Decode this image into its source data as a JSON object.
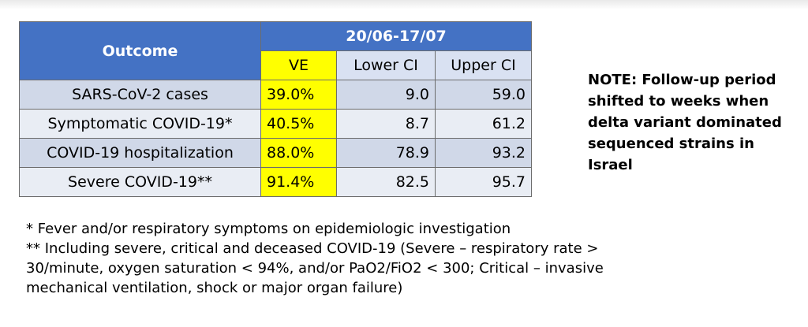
{
  "table": {
    "header_outcome": "Outcome",
    "header_period": "20/06-17/07",
    "header_ve": "VE",
    "header_lower": "Lower CI",
    "header_upper": "Upper CI",
    "rows": [
      {
        "outcome": "SARS-CoV-2 cases",
        "ve": "39.0%",
        "lower": "9.0",
        "upper": "59.0"
      },
      {
        "outcome": "Symptomatic COVID-19*",
        "ve": "40.5%",
        "lower": "8.7",
        "upper": "61.2"
      },
      {
        "outcome": "COVID-19 hospitalization",
        "ve": "88.0%",
        "lower": "78.9",
        "upper": "93.2"
      },
      {
        "outcome": "Severe COVID-19**",
        "ve": "91.4%",
        "lower": "82.5",
        "upper": "95.7"
      }
    ]
  },
  "note": "NOTE: Follow-up period shifted to weeks when delta variant dominated sequenced strains in Israel",
  "footnotes": [
    "* Fever and/or respiratory symptoms on epidemiologic investigation",
    "** Including severe, critical and deceased COVID-19 (Severe – respiratory rate > 30/minute, oxygen saturation < 94%, and/or PaO2/FiO2 < 300; Critical – invasive mechanical ventilation, shock or major organ failure)"
  ],
  "colors": {
    "header_blue": "#4472c4",
    "highlight_yellow": "#ffff00",
    "row_light": "#e9edf4",
    "row_dark": "#d0d8e8"
  }
}
